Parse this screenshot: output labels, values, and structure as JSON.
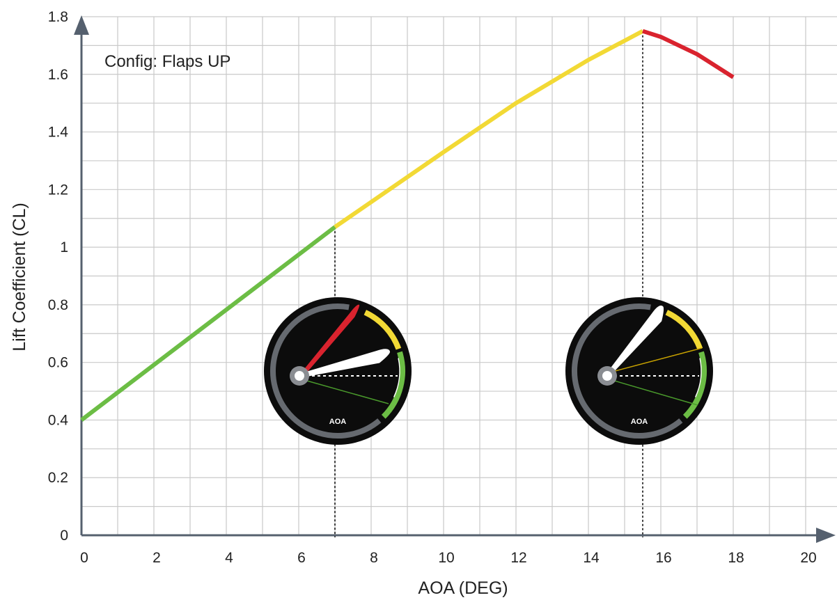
{
  "chart_data": {
    "type": "line",
    "xlabel": "AOA (DEG)",
    "ylabel": "Lift Coefficient (CL)",
    "annotation": "Config: Flaps UP",
    "xlim": [
      0,
      21
    ],
    "ylim": [
      0,
      1.8
    ],
    "x_ticks": [
      "0",
      "2",
      "4",
      "6",
      "8",
      "10",
      "12",
      "14",
      "16",
      "18",
      "20"
    ],
    "y_ticks": [
      "0",
      "0.2",
      "0.4",
      "0.6",
      "0.8",
      "1",
      "1.2",
      "1.4",
      "1.6",
      "1.8"
    ],
    "grid": true,
    "series": [
      {
        "color": "#6cbd45",
        "x": [
          0,
          7
        ],
        "y": [
          0.4,
          1.07
        ]
      },
      {
        "color": "#f2d935",
        "x": [
          7,
          10,
          12,
          14,
          15.5
        ],
        "y": [
          1.07,
          1.33,
          1.5,
          1.65,
          1.75
        ]
      },
      {
        "color": "#d9232e",
        "x": [
          15.5,
          16,
          17,
          18
        ],
        "y": [
          1.75,
          1.73,
          1.67,
          1.59
        ]
      }
    ],
    "reference_lines_x": [
      7,
      15.5
    ],
    "gauges": [
      {
        "label": "AOA",
        "at_aoa": 7
      },
      {
        "label": "AOA",
        "at_aoa": 15.5
      }
    ]
  }
}
